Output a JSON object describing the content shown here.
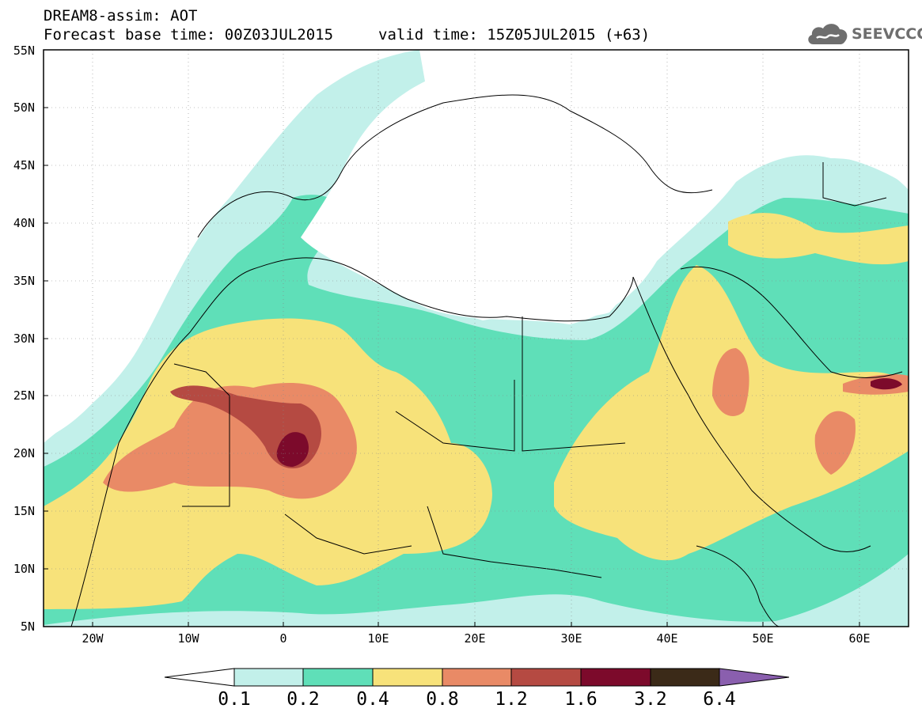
{
  "title": {
    "line1": "DREAM8-assim: AOT",
    "line2": "Forecast base time: 00Z03JUL2015",
    "valid": "valid time: 15Z05JUL2015 (+63)"
  },
  "logo": {
    "text": "SEEVCCC",
    "icon": "cloud-icon"
  },
  "lat_labels": [
    "55N",
    "50N",
    "45N",
    "40N",
    "35N",
    "30N",
    "25N",
    "20N",
    "15N",
    "10N",
    "5N"
  ],
  "lon_labels": [
    "20W",
    "10W",
    "0",
    "10E",
    "20E",
    "30E",
    "40E",
    "50E",
    "60E"
  ],
  "colorbar": {
    "labels": [
      "0.1",
      "0.2",
      "0.4",
      "0.8",
      "1.2",
      "1.6",
      "3.2",
      "6.4"
    ],
    "colors": [
      "#ffffff",
      "#c2f0ea",
      "#5fdfb8",
      "#f7e27a",
      "#e98a66",
      "#b54a42",
      "#7c0a2b",
      "#3b2a18",
      "#8a5fae"
    ]
  },
  "colors": {
    "c01": "#c2f0ea",
    "c02": "#5fdfb8",
    "c04": "#f7e27a",
    "c08": "#e98a66",
    "c12": "#b54a42",
    "c16": "#7c0a2b"
  }
}
